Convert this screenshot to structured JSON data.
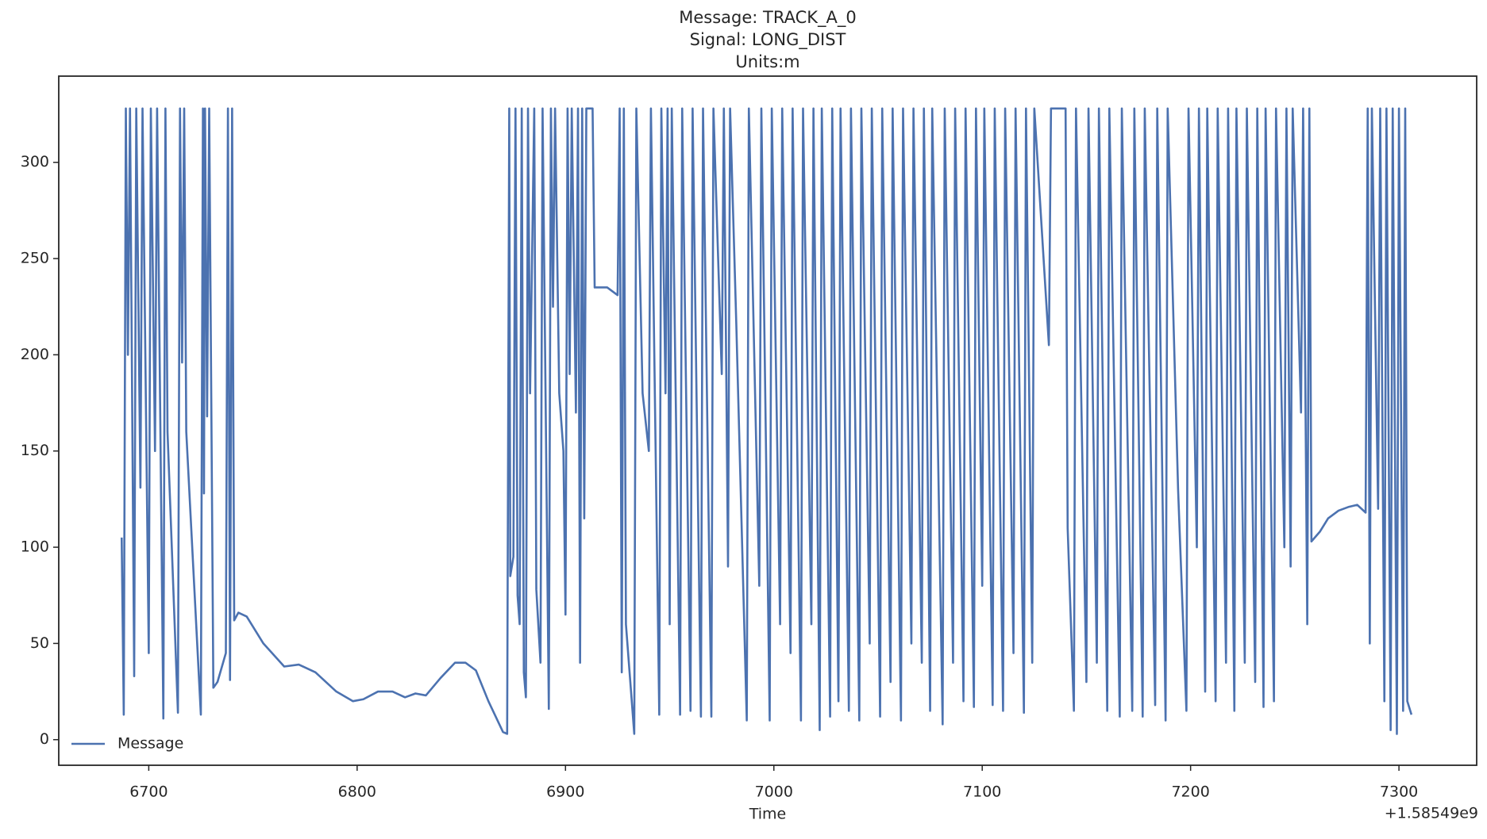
{
  "chart_data": {
    "type": "line",
    "title": [
      "Message: TRACK_A_0",
      "Signal: LONG_DIST",
      "Units:m"
    ],
    "x_label": "Time",
    "x_offset_label": "+1.58549e9",
    "xlim": [
      6656.8,
      7337.3
    ],
    "xticks": [
      6700,
      6800,
      6900,
      7000,
      7100,
      7200,
      7300
    ],
    "ylim": [
      -13.3,
      344.8
    ],
    "yticks": [
      0,
      50,
      100,
      150,
      200,
      250,
      300
    ],
    "grid": false,
    "legend": "lower left",
    "x": [
      6687,
      6688,
      6689,
      6690,
      6691,
      6693,
      6694,
      6696,
      6697,
      6700,
      6701,
      6703,
      6704,
      6707,
      6708,
      6709,
      6714,
      6715,
      6716,
      6717,
      6718,
      6725,
      6726,
      6726.5,
      6727,
      6728,
      6729,
      6731,
      6733,
      6737,
      6738,
      6739,
      6740,
      6741,
      6743,
      6747,
      6755,
      6765,
      6772,
      6780,
      6790,
      6798,
      6803,
      6810,
      6817,
      6823,
      6828,
      6833,
      6840,
      6847,
      6852,
      6857,
      6863,
      6870,
      6872,
      6873,
      6873.5,
      6875,
      6876,
      6877,
      6878,
      6879,
      6880,
      6881,
      6882,
      6883,
      6885,
      6886,
      6888,
      6889,
      6892,
      6893,
      6894,
      6895,
      6897,
      6899,
      6900,
      6901,
      6902,
      6903,
      6905,
      6906,
      6907,
      6908,
      6909,
      6910,
      6913,
      6914,
      6920,
      6925,
      6926,
      6927,
      6928,
      6929,
      6933,
      6934,
      6937,
      6940,
      6941,
      6945,
      6946,
      6948,
      6949,
      6950,
      6951,
      6955,
      6956,
      6960,
      6961,
      6965,
      6966,
      6970,
      6971,
      6975,
      6976,
      6978,
      6979,
      6982,
      6987,
      6988,
      6993,
      6994,
      6998,
      6999,
      7003,
      7004,
      7008,
      7009,
      7013,
      7014,
      7018,
      7019,
      7022,
      7023,
      7027,
      7028,
      7031,
      7032,
      7036,
      7037,
      7041,
      7042,
      7046,
      7047,
      7051,
      7052,
      7056,
      7057,
      7061,
      7062,
      7066,
      7067,
      7071,
      7072,
      7075,
      7076,
      7081,
      7082,
      7086,
      7087,
      7091,
      7092,
      7096,
      7097,
      7100,
      7101,
      7105,
      7106,
      7110,
      7111,
      7115,
      7116,
      7120,
      7121,
      7124,
      7125,
      7132,
      7133,
      7140,
      7141,
      7144,
      7145,
      7150,
      7151,
      7155,
      7156,
      7160,
      7161,
      7166,
      7167,
      7172,
      7173,
      7177,
      7178,
      7183,
      7184,
      7188,
      7189,
      7194,
      7198,
      7199,
      7203,
      7204,
      7207,
      7208,
      7212,
      7213,
      7217,
      7218,
      7221,
      7222,
      7226,
      7227,
      7231,
      7232,
      7235,
      7236,
      7240,
      7241,
      7245,
      7246,
      7248,
      7249,
      7253,
      7254,
      7256,
      7257,
      7258,
      7262,
      7266,
      7271,
      7276,
      7280,
      7284,
      7285,
      7286,
      7287,
      7290,
      7291,
      7293,
      7294,
      7296,
      7297,
      7299,
      7300,
      7302,
      7303,
      7304,
      7306
    ],
    "series": [
      {
        "name": "Message",
        "color": "#4c72b0",
        "values": [
          105,
          13,
          328,
          200,
          328,
          33,
          328,
          131,
          328,
          45,
          328,
          150,
          328,
          11,
          328,
          160,
          14,
          328,
          196,
          328,
          160,
          13,
          328,
          128,
          328,
          168,
          328,
          27,
          30,
          45,
          328,
          31,
          328,
          62,
          66,
          64,
          50,
          38,
          39,
          35,
          25,
          20,
          21,
          25,
          25,
          22,
          24,
          23,
          32,
          40,
          40,
          36,
          20,
          4,
          3,
          328,
          85,
          95,
          328,
          75,
          60,
          328,
          35,
          22,
          328,
          180,
          328,
          78,
          40,
          328,
          16,
          328,
          225,
          328,
          180,
          150,
          65,
          328,
          190,
          328,
          170,
          328,
          40,
          328,
          115,
          328,
          328,
          235,
          235,
          231,
          328,
          35,
          328,
          60,
          3,
          328,
          180,
          150,
          328,
          13,
          328,
          180,
          328,
          60,
          328,
          13,
          328,
          15,
          328,
          12,
          328,
          12,
          328,
          190,
          328,
          90,
          328,
          215,
          10,
          328,
          80,
          328,
          10,
          328,
          60,
          328,
          45,
          328,
          10,
          328,
          60,
          328,
          5,
          328,
          12,
          328,
          20,
          328,
          15,
          328,
          10,
          328,
          50,
          328,
          12,
          328,
          30,
          328,
          10,
          328,
          50,
          328,
          40,
          328,
          15,
          328,
          8,
          328,
          40,
          328,
          20,
          328,
          17,
          328,
          80,
          328,
          18,
          328,
          15,
          328,
          45,
          328,
          14,
          328,
          40,
          328,
          205,
          328,
          328,
          110,
          15,
          328,
          30,
          328,
          40,
          328,
          15,
          328,
          12,
          328,
          15,
          328,
          12,
          328,
          18,
          328,
          10,
          328,
          130,
          15,
          328,
          100,
          328,
          25,
          328,
          20,
          328,
          40,
          328,
          15,
          328,
          40,
          328,
          30,
          328,
          17,
          328,
          20,
          328,
          100,
          328,
          90,
          328,
          170,
          328,
          60,
          328,
          103,
          108,
          115,
          119,
          121,
          122,
          118,
          328,
          50,
          328,
          120,
          328,
          20,
          328,
          5,
          328,
          3,
          328,
          15,
          328,
          20,
          13
        ]
      }
    ]
  }
}
